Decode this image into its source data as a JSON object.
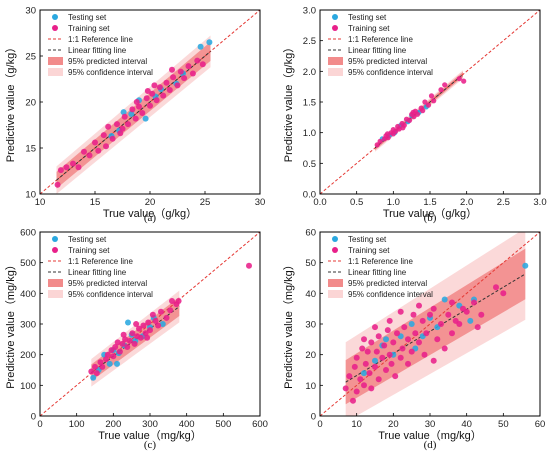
{
  "legend": {
    "testing": "Testing set",
    "training": "Training set",
    "ref": "1:1 Reference line",
    "fit": "Linear fitting line",
    "pred": "95% predicted interval",
    "conf": "95% confidence interval"
  },
  "colors": {
    "testing": "#2aa8e0",
    "training": "#e8208a",
    "ref": "#e53935",
    "fit": "#333333",
    "pred": "#f28b8b",
    "conf": "#fbd5d5"
  },
  "chart_data": [
    {
      "type": "scatter",
      "caption": "(a)",
      "xlabel": "True value（g/kg）",
      "ylabel": "Predictive value（g/kg）",
      "xlim": [
        10,
        30
      ],
      "ylim": [
        10,
        30
      ],
      "xticks": [
        10,
        15,
        20,
        25,
        30
      ],
      "yticks": [
        10,
        15,
        20,
        25,
        30
      ],
      "tick_labels_x": [
        "10",
        "15",
        "20",
        "25",
        "30"
      ],
      "tick_labels_y": [
        "10",
        "15",
        "20",
        "25",
        "30"
      ],
      "legend_position": "top-left",
      "fit": {
        "slope": 1.0,
        "intercept": 0.0,
        "xmin": 11.5,
        "xmax": 25.5,
        "pred_halfwidth": 1.5,
        "conf_halfwidth": 0.5
      },
      "series": [
        {
          "name": "Testing set",
          "points": [
            [
              16.5,
              16.3
            ],
            [
              17.2,
              16.9
            ],
            [
              19.0,
              20.2
            ],
            [
              20.5,
              20.6
            ],
            [
              21.0,
              21.4
            ],
            [
              22.4,
              22.0
            ],
            [
              23.0,
              23.1
            ],
            [
              24.6,
              26.0
            ],
            [
              25.4,
              26.5
            ],
            [
              18.3,
              18.7
            ],
            [
              19.6,
              18.2
            ],
            [
              17.6,
              18.9
            ]
          ]
        },
        {
          "name": "Training set",
          "points": [
            [
              11.6,
              11.0
            ],
            [
              11.9,
              12.6
            ],
            [
              12.4,
              12.9
            ],
            [
              13.0,
              13.3
            ],
            [
              13.5,
              12.9
            ],
            [
              14.0,
              14.6
            ],
            [
              14.5,
              14.2
            ],
            [
              15.0,
              15.6
            ],
            [
              15.3,
              14.7
            ],
            [
              15.8,
              16.4
            ],
            [
              16.2,
              17.3
            ],
            [
              16.6,
              16.0
            ],
            [
              17.0,
              17.6
            ],
            [
              17.3,
              16.6
            ],
            [
              17.7,
              18.4
            ],
            [
              18.0,
              17.6
            ],
            [
              18.4,
              19.2
            ],
            [
              18.7,
              18.2
            ],
            [
              19.0,
              19.5
            ],
            [
              19.3,
              18.8
            ],
            [
              19.7,
              20.4
            ],
            [
              20.0,
              19.6
            ],
            [
              20.2,
              20.9
            ],
            [
              20.6,
              20.2
            ],
            [
              20.9,
              21.6
            ],
            [
              21.2,
              20.7
            ],
            [
              21.5,
              22.1
            ],
            [
              21.8,
              21.3
            ],
            [
              22.1,
              22.7
            ],
            [
              22.5,
              21.8
            ],
            [
              22.8,
              23.3
            ],
            [
              23.1,
              22.6
            ],
            [
              23.5,
              23.9
            ],
            [
              23.9,
              23.1
            ],
            [
              24.3,
              24.5
            ],
            [
              24.8,
              24.1
            ],
            [
              16.0,
              15.2
            ],
            [
              18.8,
              20.0
            ],
            [
              20.4,
              21.8
            ],
            [
              19.8,
              21.2
            ],
            [
              17.5,
              17.1
            ],
            [
              22.0,
              23.5
            ]
          ]
        }
      ]
    },
    {
      "type": "scatter",
      "caption": "(b)",
      "xlabel": "True value（g/kg）",
      "ylabel": "Predictive value（g/kg）",
      "xlim": [
        0,
        3
      ],
      "ylim": [
        0,
        3
      ],
      "xticks": [
        0,
        0.5,
        1,
        1.5,
        2,
        2.5,
        3
      ],
      "yticks": [
        0,
        0.5,
        1,
        1.5,
        2,
        2.5,
        3
      ],
      "tick_labels_x": [
        "0.0",
        "0.5",
        "1.0",
        "1.5",
        "2.0",
        "2.5",
        "3.0"
      ],
      "tick_labels_y": [
        "0.0",
        "0.5",
        "1.0",
        "1.5",
        "2.0",
        "2.5",
        "3.0"
      ],
      "legend_position": "top-left",
      "fit": {
        "slope": 1.0,
        "intercept": 0.0,
        "xmin": 0.75,
        "xmax": 1.95,
        "pred_halfwidth": 0.06,
        "conf_halfwidth": 0.02
      },
      "series": [
        {
          "name": "Testing set",
          "points": [
            [
              0.85,
              0.9
            ],
            [
              0.95,
              0.96
            ],
            [
              1.02,
              1.0
            ],
            [
              1.1,
              1.12
            ],
            [
              1.2,
              1.18
            ],
            [
              1.25,
              1.28
            ],
            [
              1.35,
              1.33
            ],
            [
              1.45,
              1.42
            ]
          ]
        },
        {
          "name": "Training set",
          "points": [
            [
              0.78,
              0.8
            ],
            [
              0.82,
              0.86
            ],
            [
              0.88,
              0.9
            ],
            [
              0.9,
              0.95
            ],
            [
              0.93,
              0.92
            ],
            [
              0.97,
              1.0
            ],
            [
              1.0,
              1.05
            ],
            [
              1.03,
              1.02
            ],
            [
              1.06,
              1.1
            ],
            [
              1.08,
              1.06
            ],
            [
              1.12,
              1.15
            ],
            [
              1.15,
              1.12
            ],
            [
              1.18,
              1.22
            ],
            [
              1.22,
              1.2
            ],
            [
              1.25,
              1.3
            ],
            [
              1.28,
              1.26
            ],
            [
              1.3,
              1.35
            ],
            [
              1.33,
              1.3
            ],
            [
              1.38,
              1.4
            ],
            [
              1.4,
              1.36
            ],
            [
              1.43,
              1.5
            ],
            [
              1.48,
              1.45
            ],
            [
              1.52,
              1.6
            ],
            [
              1.55,
              1.52
            ],
            [
              1.65,
              1.7
            ],
            [
              1.7,
              1.78
            ],
            [
              1.9,
              1.88
            ],
            [
              1.96,
              1.84
            ],
            [
              1.0,
              0.98
            ],
            [
              1.13,
              1.08
            ],
            [
              0.92,
              0.98
            ],
            [
              1.27,
              1.33
            ]
          ]
        }
      ]
    },
    {
      "type": "scatter",
      "caption": "(c)",
      "xlabel": "True value（mg/kg）",
      "ylabel": "Predictive value（mg/kg）",
      "xlim": [
        0,
        600
      ],
      "ylim": [
        0,
        600
      ],
      "xticks": [
        0,
        100,
        200,
        300,
        400,
        500,
        600
      ],
      "yticks": [
        0,
        100,
        200,
        300,
        400,
        500,
        600
      ],
      "tick_labels_x": [
        "0",
        "100",
        "200",
        "300",
        "400",
        "500",
        "600"
      ],
      "tick_labels_y": [
        "0",
        "100",
        "200",
        "300",
        "400",
        "500",
        "600"
      ],
      "legend_position": "top-left",
      "fit": {
        "slope": 0.9,
        "intercept": 15,
        "xmin": 140,
        "xmax": 380,
        "pred_halfwidth": 45,
        "conf_halfwidth": 15
      },
      "series": [
        {
          "name": "Testing set",
          "points": [
            [
              145,
              125
            ],
            [
              160,
              150
            ],
            [
              175,
              200
            ],
            [
              190,
              170
            ],
            [
              200,
              215
            ],
            [
              215,
              205
            ],
            [
              230,
              230
            ],
            [
              240,
              305
            ],
            [
              250,
              265
            ],
            [
              260,
              245
            ],
            [
              280,
              260
            ],
            [
              300,
              290
            ],
            [
              310,
              320
            ],
            [
              335,
              300
            ],
            [
              210,
              170
            ]
          ]
        },
        {
          "name": "Training set",
          "points": [
            [
              140,
              145
            ],
            [
              150,
              160
            ],
            [
              155,
              140
            ],
            [
              165,
              175
            ],
            [
              170,
              160
            ],
            [
              180,
              185
            ],
            [
              185,
              200
            ],
            [
              195,
              215
            ],
            [
              200,
              195
            ],
            [
              205,
              225
            ],
            [
              212,
              240
            ],
            [
              218,
              210
            ],
            [
              225,
              235
            ],
            [
              232,
              250
            ],
            [
              238,
              225
            ],
            [
              245,
              245
            ],
            [
              252,
              270
            ],
            [
              258,
              235
            ],
            [
              265,
              260
            ],
            [
              270,
              285
            ],
            [
              275,
              255
            ],
            [
              282,
              295
            ],
            [
              288,
              270
            ],
            [
              295,
              305
            ],
            [
              300,
              280
            ],
            [
              308,
              330
            ],
            [
              315,
              310
            ],
            [
              322,
              295
            ],
            [
              330,
              340
            ],
            [
              345,
              320
            ],
            [
              355,
              345
            ],
            [
              360,
              375
            ],
            [
              372,
              365
            ],
            [
              378,
              375
            ],
            [
              570,
              490
            ],
            [
              228,
              265
            ],
            [
              262,
              300
            ],
            [
              292,
              255
            ]
          ]
        }
      ]
    },
    {
      "type": "scatter",
      "caption": "(d)",
      "xlabel": "True value（mg/kg）",
      "ylabel": "Predictive value（mg/kg）",
      "xlim": [
        0,
        60
      ],
      "ylim": [
        0,
        60
      ],
      "xticks": [
        0,
        10,
        20,
        30,
        40,
        50,
        60
      ],
      "yticks": [
        0,
        10,
        20,
        30,
        40,
        50,
        60
      ],
      "tick_labels_x": [
        "0",
        "10",
        "20",
        "30",
        "40",
        "50",
        "60"
      ],
      "tick_labels_y": [
        "0",
        "10",
        "20",
        "30",
        "40",
        "50",
        "60"
      ],
      "legend_position": "top-left",
      "fit": {
        "slope": 0.72,
        "intercept": 6.0,
        "xmin": 7,
        "xmax": 56,
        "pred_halfwidth": 13,
        "conf_halfwidth": 4
      },
      "series": [
        {
          "name": "Testing set",
          "points": [
            [
              12,
              14
            ],
            [
              15,
              18
            ],
            [
              17,
              23
            ],
            [
              18,
              25
            ],
            [
              20,
              20
            ],
            [
              22,
              26
            ],
            [
              25,
              30
            ],
            [
              28,
              26
            ],
            [
              30,
              32
            ],
            [
              32,
              29
            ],
            [
              34,
              38
            ],
            [
              38,
              36
            ],
            [
              41,
              31
            ],
            [
              42,
              38
            ],
            [
              56,
              49
            ],
            [
              26,
              22
            ]
          ]
        },
        {
          "name": "Training set",
          "points": [
            [
              7,
              9
            ],
            [
              8,
              13
            ],
            [
              9,
              5
            ],
            [
              9.5,
              16
            ],
            [
              10,
              8
            ],
            [
              10,
              19
            ],
            [
              11,
              12
            ],
            [
              11.5,
              22
            ],
            [
              12,
              10
            ],
            [
              12.5,
              17
            ],
            [
              13,
              21
            ],
            [
              13.5,
              14
            ],
            [
              14,
              24
            ],
            [
              14,
              9
            ],
            [
              15,
              16
            ],
            [
              15.5,
              21
            ],
            [
              16,
              12
            ],
            [
              16,
              26
            ],
            [
              17,
              19
            ],
            [
              17.5,
              23
            ],
            [
              18,
              15
            ],
            [
              18.5,
              28
            ],
            [
              19,
              20
            ],
            [
              19.5,
              17
            ],
            [
              20,
              24
            ],
            [
              20.5,
              13
            ],
            [
              21,
              27
            ],
            [
              22,
              19
            ],
            [
              22.5,
              22
            ],
            [
              23,
              29
            ],
            [
              24,
              17
            ],
            [
              24,
              25
            ],
            [
              25,
              21
            ],
            [
              25.5,
              33
            ],
            [
              26,
              27
            ],
            [
              27,
              24
            ],
            [
              28,
              31
            ],
            [
              28.5,
              20
            ],
            [
              29,
              27
            ],
            [
              30,
              33
            ],
            [
              31,
              18
            ],
            [
              31,
              35
            ],
            [
              32,
              25
            ],
            [
              33,
              30
            ],
            [
              34,
              22
            ],
            [
              35,
              33
            ],
            [
              36,
              27
            ],
            [
              36,
              37
            ],
            [
              37,
              31
            ],
            [
              38,
              30
            ],
            [
              39,
              35
            ],
            [
              40,
              34
            ],
            [
              42,
              37
            ],
            [
              43,
              29
            ],
            [
              44,
              33
            ],
            [
              48,
              42
            ],
            [
              50,
              40
            ],
            [
              19,
              31
            ],
            [
              22,
              34
            ],
            [
              27,
              36
            ],
            [
              15,
              29
            ],
            [
              12,
              25
            ]
          ]
        }
      ]
    }
  ]
}
